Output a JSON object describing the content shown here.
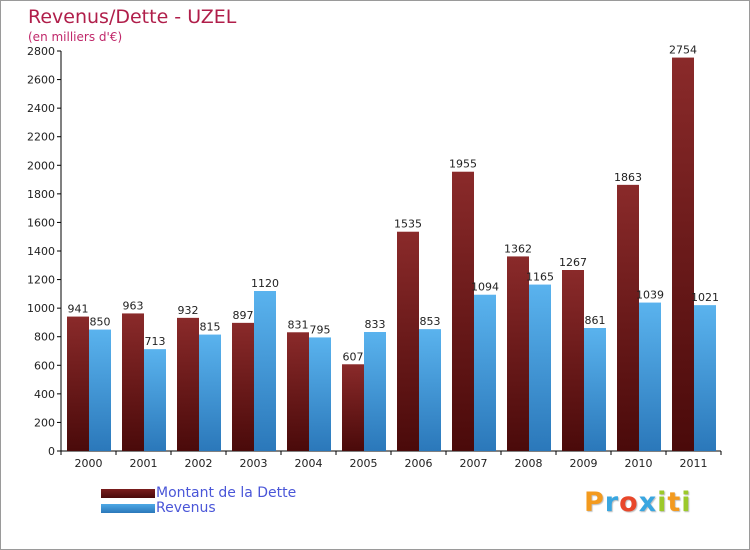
{
  "title": "Revenus/Dette - UZEL",
  "subtitle": "(en milliers d'€)",
  "colors": {
    "debt": "#7a1d1d",
    "debt_dark": "#4a0a0a",
    "revenue": "#4ea9e6",
    "revenue_dark": "#2b78ba",
    "title": "#b01e4a",
    "legend_text": "#4a56d8",
    "grid_axis": "#000000"
  },
  "legend": {
    "debt_label": "Montant de la Dette",
    "revenue_label": "Revenus"
  },
  "logo": {
    "letters": [
      "P",
      "r",
      "o",
      "x",
      "i",
      "t",
      "i"
    ],
    "colors": [
      "#f39a1e",
      "#39a6e0",
      "#e8472a",
      "#39a6e0",
      "#9cc92a",
      "#f39a1e",
      "#9cc92a"
    ]
  },
  "chart_data": {
    "type": "bar",
    "categories": [
      "2000",
      "2001",
      "2002",
      "2003",
      "2004",
      "2005",
      "2006",
      "2007",
      "2008",
      "2009",
      "2010",
      "2011"
    ],
    "series": [
      {
        "name": "Montant de la Dette",
        "values": [
          941,
          963,
          932,
          897,
          831,
          607,
          1535,
          1955,
          1362,
          1267,
          1863,
          2754
        ]
      },
      {
        "name": "Revenus",
        "values": [
          850,
          713,
          815,
          1120,
          795,
          833,
          853,
          1094,
          1165,
          861,
          1039,
          1021
        ]
      }
    ],
    "ylim": [
      0,
      2800
    ],
    "yticks": [
      0,
      200,
      400,
      600,
      800,
      1000,
      1200,
      1400,
      1600,
      1800,
      2000,
      2200,
      2400,
      2600,
      2800
    ],
    "grid": false,
    "legend_position": "bottom-left"
  }
}
